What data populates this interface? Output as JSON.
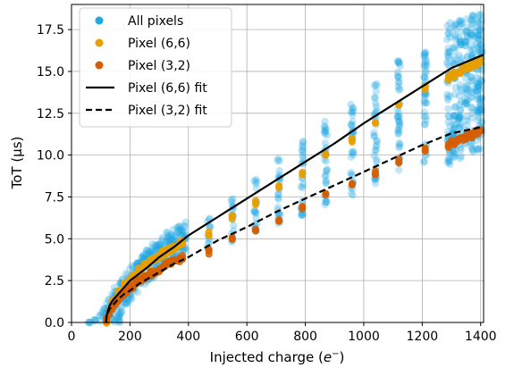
{
  "chart_data": {
    "type": "scatter",
    "xlabel": "Injected charge (",
    "xlabel_symbol": "e",
    "xlabel_sup": "−",
    "xlabel_end": ")",
    "ylabel": "ToT (μs)",
    "xlim": [
      0,
      1410
    ],
    "ylim": [
      0,
      19
    ],
    "xticks": [
      0,
      200,
      400,
      600,
      800,
      1000,
      1200,
      1400
    ],
    "yticks": [
      0.0,
      2.5,
      5.0,
      7.5,
      10.0,
      12.5,
      15.0,
      17.5
    ],
    "grid": true,
    "legend_position": "top-left",
    "legend": [
      {
        "label": "All pixels",
        "kind": "marker",
        "color": "#1ea7e1"
      },
      {
        "label": "Pixel (6,6)",
        "kind": "marker",
        "color": "#e69f00"
      },
      {
        "label": "Pixel (3,2)",
        "kind": "marker",
        "color": "#d55e00"
      },
      {
        "label": "Pixel (6,6) fit",
        "kind": "line",
        "color": "#000000",
        "dash": "solid"
      },
      {
        "label": "Pixel (3,2) fit",
        "kind": "line",
        "color": "#000000",
        "dash": "dashed"
      }
    ],
    "series": [
      {
        "name": "All pixels",
        "color": "#1ea7e1",
        "x": [
          60,
          80,
          100,
          110,
          120,
          130,
          140,
          150,
          160,
          170,
          180,
          190,
          200,
          210,
          220,
          230,
          240,
          250,
          260,
          270,
          280,
          290,
          300,
          310,
          320,
          330,
          340,
          350,
          360,
          370,
          380,
          390,
          470,
          550,
          630,
          710,
          790,
          870,
          960,
          1040,
          1120,
          1210,
          1290,
          1310,
          1330,
          1350,
          1370,
          1390,
          1400
        ],
        "y_low": [
          0.0,
          0.0,
          0.0,
          0.0,
          0.0,
          0.0,
          0.0,
          0.0,
          0.0,
          0.0,
          0.8,
          1.0,
          1.2,
          1.4,
          1.6,
          1.8,
          2.0,
          2.2,
          2.3,
          2.5,
          2.7,
          2.9,
          3.0,
          3.2,
          3.3,
          3.5,
          3.6,
          3.8,
          3.9,
          4.0,
          4.1,
          4.2,
          4.2,
          4.8,
          5.3,
          5.9,
          6.4,
          7.0,
          7.6,
          8.3,
          8.9,
          9.5,
          9.4,
          9.6,
          9.8,
          10.0,
          10.1,
          10.3,
          10.3
        ],
        "y_high": [
          0.0,
          0.2,
          0.6,
          0.9,
          1.2,
          1.5,
          1.8,
          2.1,
          2.4,
          2.6,
          2.8,
          3.0,
          3.2,
          3.4,
          3.6,
          3.8,
          4.0,
          4.2,
          4.4,
          4.6,
          4.7,
          4.9,
          5.0,
          5.2,
          5.3,
          5.4,
          5.5,
          5.6,
          5.7,
          5.8,
          5.9,
          6.0,
          6.4,
          7.6,
          8.7,
          9.9,
          11.0,
          12.1,
          13.3,
          14.5,
          15.7,
          16.8,
          17.9,
          18.0,
          18.2,
          18.3,
          18.4,
          18.5,
          18.5
        ]
      },
      {
        "name": "Pixel (6,6)",
        "color": "#e69f00",
        "x": [
          120,
          130,
          140,
          150,
          160,
          170,
          180,
          190,
          200,
          210,
          220,
          230,
          240,
          250,
          260,
          270,
          280,
          290,
          300,
          310,
          320,
          330,
          340,
          350,
          360,
          370,
          380,
          470,
          550,
          630,
          710,
          790,
          870,
          960,
          1040,
          1120,
          1210,
          1290,
          1300,
          1310,
          1320,
          1330,
          1340,
          1350,
          1360,
          1370,
          1380,
          1390,
          1400
        ],
        "y": [
          0.1,
          0.8,
          1.2,
          1.5,
          1.8,
          2.0,
          2.2,
          2.4,
          2.6,
          2.8,
          2.9,
          3.1,
          3.2,
          3.4,
          3.5,
          3.6,
          3.8,
          3.9,
          4.0,
          4.1,
          4.2,
          4.3,
          4.4,
          4.5,
          4.6,
          4.7,
          4.8,
          5.3,
          6.3,
          7.2,
          8.0,
          9.0,
          10.0,
          10.9,
          11.9,
          12.9,
          14.0,
          14.6,
          14.7,
          14.8,
          14.9,
          15.0,
          15.1,
          15.2,
          15.3,
          15.4,
          15.4,
          15.5,
          15.6
        ]
      },
      {
        "name": "Pixel (3,2)",
        "color": "#d55e00",
        "x": [
          120,
          130,
          140,
          150,
          160,
          170,
          180,
          190,
          200,
          210,
          220,
          230,
          240,
          250,
          260,
          270,
          280,
          290,
          300,
          310,
          320,
          330,
          340,
          350,
          360,
          370,
          380,
          470,
          550,
          630,
          710,
          790,
          870,
          960,
          1040,
          1120,
          1210,
          1290,
          1300,
          1310,
          1320,
          1330,
          1340,
          1350,
          1360,
          1370,
          1380,
          1390,
          1400
        ],
        "y": [
          0.1,
          0.6,
          0.9,
          1.2,
          1.4,
          1.6,
          1.8,
          1.9,
          2.1,
          2.2,
          2.4,
          2.5,
          2.6,
          2.7,
          2.8,
          2.9,
          3.0,
          3.1,
          3.2,
          3.3,
          3.4,
          3.5,
          3.6,
          3.7,
          3.7,
          3.8,
          3.9,
          4.2,
          5.0,
          5.6,
          6.2,
          6.9,
          7.6,
          8.3,
          8.9,
          9.6,
          10.3,
          10.6,
          10.7,
          10.8,
          10.9,
          11.0,
          11.0,
          11.1,
          11.2,
          11.2,
          11.3,
          11.4,
          11.5
        ]
      },
      {
        "name": "Pixel (6,6) fit",
        "color": "#000000",
        "x": [
          118,
          120,
          125,
          130,
          140,
          150,
          160,
          180,
          200,
          230,
          260,
          300,
          350,
          400,
          500,
          600,
          700,
          800,
          900,
          1000,
          1100,
          1200,
          1300,
          1410
        ],
        "y": [
          0.0,
          0.4,
          0.7,
          1.0,
          1.3,
          1.5,
          1.7,
          2.1,
          2.5,
          2.9,
          3.3,
          3.9,
          4.5,
          5.2,
          6.3,
          7.4,
          8.5,
          9.6,
          10.7,
          11.9,
          13.0,
          14.1,
          15.2,
          16.0
        ]
      },
      {
        "name": "Pixel (3,2) fit",
        "color": "#000000",
        "x": [
          118,
          120,
          125,
          130,
          140,
          150,
          160,
          180,
          200,
          230,
          260,
          300,
          350,
          400,
          500,
          600,
          700,
          800,
          900,
          1000,
          1100,
          1200,
          1300,
          1410
        ],
        "y": [
          0.0,
          0.3,
          0.6,
          0.8,
          1.0,
          1.2,
          1.4,
          1.7,
          1.9,
          2.3,
          2.6,
          3.0,
          3.5,
          3.9,
          4.9,
          5.7,
          6.6,
          7.4,
          8.2,
          9.0,
          9.8,
          10.6,
          11.3,
          11.7
        ]
      }
    ]
  }
}
